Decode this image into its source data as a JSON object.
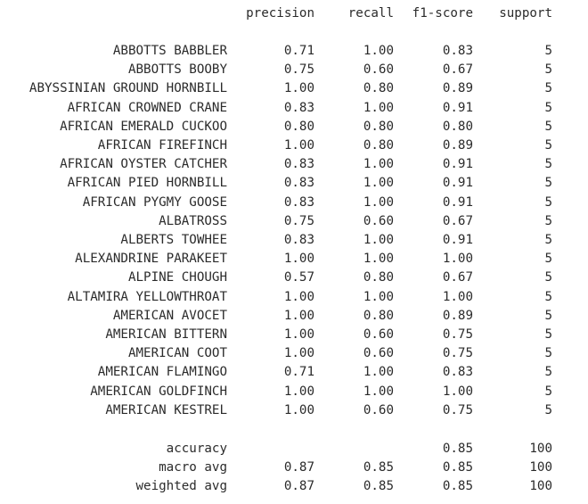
{
  "headers": {
    "precision": "precision",
    "recall": "recall",
    "f1": "f1-score",
    "support": "support"
  },
  "rows": [
    {
      "label": "ABBOTTS BABBLER",
      "precision": "0.71",
      "recall": "1.00",
      "f1": "0.83",
      "support": "5"
    },
    {
      "label": "ABBOTTS BOOBY",
      "precision": "0.75",
      "recall": "0.60",
      "f1": "0.67",
      "support": "5"
    },
    {
      "label": "ABYSSINIAN GROUND HORNBILL",
      "precision": "1.00",
      "recall": "0.80",
      "f1": "0.89",
      "support": "5"
    },
    {
      "label": "AFRICAN CROWNED CRANE",
      "precision": "0.83",
      "recall": "1.00",
      "f1": "0.91",
      "support": "5"
    },
    {
      "label": "AFRICAN EMERALD CUCKOO",
      "precision": "0.80",
      "recall": "0.80",
      "f1": "0.80",
      "support": "5"
    },
    {
      "label": "AFRICAN FIREFINCH",
      "precision": "1.00",
      "recall": "0.80",
      "f1": "0.89",
      "support": "5"
    },
    {
      "label": "AFRICAN OYSTER CATCHER",
      "precision": "0.83",
      "recall": "1.00",
      "f1": "0.91",
      "support": "5"
    },
    {
      "label": "AFRICAN PIED HORNBILL",
      "precision": "0.83",
      "recall": "1.00",
      "f1": "0.91",
      "support": "5"
    },
    {
      "label": "AFRICAN PYGMY GOOSE",
      "precision": "0.83",
      "recall": "1.00",
      "f1": "0.91",
      "support": "5"
    },
    {
      "label": "ALBATROSS",
      "precision": "0.75",
      "recall": "0.60",
      "f1": "0.67",
      "support": "5"
    },
    {
      "label": "ALBERTS TOWHEE",
      "precision": "0.83",
      "recall": "1.00",
      "f1": "0.91",
      "support": "5"
    },
    {
      "label": "ALEXANDRINE PARAKEET",
      "precision": "1.00",
      "recall": "1.00",
      "f1": "1.00",
      "support": "5"
    },
    {
      "label": "ALPINE CHOUGH",
      "precision": "0.57",
      "recall": "0.80",
      "f1": "0.67",
      "support": "5"
    },
    {
      "label": "ALTAMIRA YELLOWTHROAT",
      "precision": "1.00",
      "recall": "1.00",
      "f1": "1.00",
      "support": "5"
    },
    {
      "label": "AMERICAN AVOCET",
      "precision": "1.00",
      "recall": "0.80",
      "f1": "0.89",
      "support": "5"
    },
    {
      "label": "AMERICAN BITTERN",
      "precision": "1.00",
      "recall": "0.60",
      "f1": "0.75",
      "support": "5"
    },
    {
      "label": "AMERICAN COOT",
      "precision": "1.00",
      "recall": "0.60",
      "f1": "0.75",
      "support": "5"
    },
    {
      "label": "AMERICAN FLAMINGO",
      "precision": "0.71",
      "recall": "1.00",
      "f1": "0.83",
      "support": "5"
    },
    {
      "label": "AMERICAN GOLDFINCH",
      "precision": "1.00",
      "recall": "1.00",
      "f1": "1.00",
      "support": "5"
    },
    {
      "label": "AMERICAN KESTREL",
      "precision": "1.00",
      "recall": "0.60",
      "f1": "0.75",
      "support": "5"
    }
  ],
  "summary": [
    {
      "label": "accuracy",
      "precision": "",
      "recall": "",
      "f1": "0.85",
      "support": "100"
    },
    {
      "label": "macro avg",
      "precision": "0.87",
      "recall": "0.85",
      "f1": "0.85",
      "support": "100"
    },
    {
      "label": "weighted avg",
      "precision": "0.87",
      "recall": "0.85",
      "f1": "0.85",
      "support": "100"
    }
  ]
}
